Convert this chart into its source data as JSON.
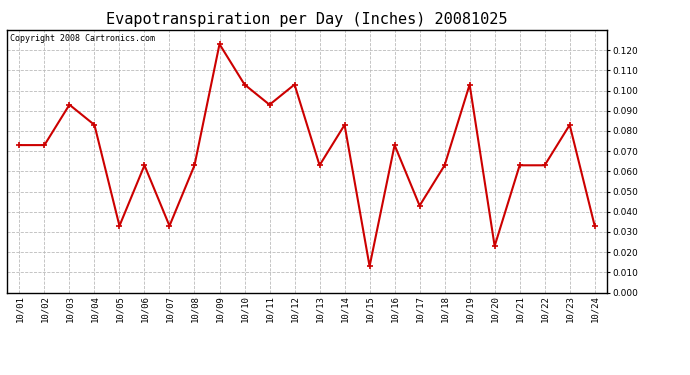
{
  "title": "Evapotranspiration per Day (Inches) 20081025",
  "copyright_text": "Copyright 2008 Cartronics.com",
  "x_labels": [
    "10/01",
    "10/02",
    "10/03",
    "10/04",
    "10/05",
    "10/06",
    "10/07",
    "10/08",
    "10/09",
    "10/10",
    "10/11",
    "10/12",
    "10/13",
    "10/14",
    "10/15",
    "10/16",
    "10/17",
    "10/18",
    "10/19",
    "10/20",
    "10/21",
    "10/22",
    "10/23",
    "10/24"
  ],
  "y_values": [
    0.073,
    0.073,
    0.093,
    0.083,
    0.033,
    0.063,
    0.033,
    0.063,
    0.123,
    0.103,
    0.093,
    0.103,
    0.063,
    0.083,
    0.013,
    0.073,
    0.043,
    0.063,
    0.103,
    0.023,
    0.063,
    0.063,
    0.083,
    0.033
  ],
  "line_color": "#cc0000",
  "marker": "+",
  "marker_size": 5,
  "marker_linewidth": 1.2,
  "linewidth": 1.5,
  "ylim": [
    0.0,
    0.13
  ],
  "ytick_values": [
    0.0,
    0.01,
    0.02,
    0.03,
    0.04,
    0.05,
    0.06,
    0.07,
    0.08,
    0.09,
    0.1,
    0.11,
    0.12
  ],
  "grid_color": "#bbbbbb",
  "bg_color": "#ffffff",
  "title_fontsize": 11,
  "copyright_fontsize": 6,
  "tick_fontsize": 6.5,
  "fig_width": 6.9,
  "fig_height": 3.75,
  "dpi": 100
}
